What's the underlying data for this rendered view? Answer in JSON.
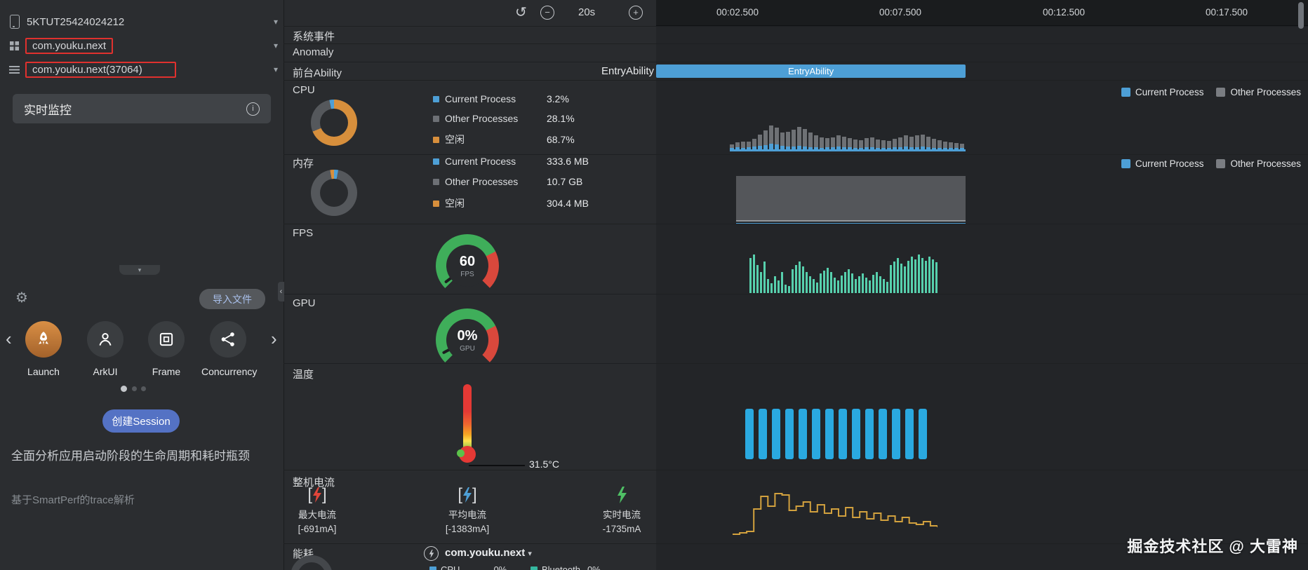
{
  "colors": {
    "accent_blue": "#4d9fd6",
    "idle_orange": "#d78f3c",
    "other_gray": "#6d7075",
    "bar_gray": "#6e7175",
    "fps_teal": "#57d0ad",
    "temp_blue": "#2aa9e0",
    "current_amber": "#d2a13e",
    "gauge_green": "#3fae5a",
    "gauge_red": "#d9483c",
    "annotation_red": "#e0312e",
    "session_blue": "#5472c4"
  },
  "sidebar": {
    "device": "5KTUT25424024212",
    "app": "com.youku.next",
    "process": "com.youku.next(37064)",
    "monitor_button": "实时监控",
    "import_button": "导入文件",
    "templates": [
      {
        "label": "Launch"
      },
      {
        "label": "ArkUI"
      },
      {
        "label": "Frame"
      },
      {
        "label": "Concurrency"
      }
    ],
    "create_session": "创建Session",
    "description": "全面分析应用启动阶段的生命周期和耗时瓶颈",
    "subtitle": "基于SmartPerf的trace解析"
  },
  "toolbar": {
    "duration": "20s"
  },
  "timeline": {
    "t1": "00:02.500",
    "t2": "00:07.500",
    "t3": "00:12.500",
    "t4": "00:17.500"
  },
  "chart_legend": {
    "current": "Current Process",
    "other": "Other Processes"
  },
  "rows": {
    "system_events": "系统事件",
    "anomaly": "Anomaly",
    "ability": {
      "label": "前台Ability",
      "value": "EntryAbility"
    },
    "cpu": {
      "label": "CPU",
      "legend": [
        {
          "name": "Current Process",
          "value": "3.2%"
        },
        {
          "name": "Other Processes",
          "value": "28.1%"
        },
        {
          "name": "空闲",
          "value": "68.7%"
        }
      ]
    },
    "memory": {
      "label": "内存",
      "legend": [
        {
          "name": "Current Process",
          "value": "333.6 MB"
        },
        {
          "name": "Other Processes",
          "value": "10.7 GB"
        },
        {
          "name": "空闲",
          "value": "304.4 MB"
        }
      ]
    },
    "fps": {
      "label": "FPS",
      "gauge_value": "60",
      "gauge_unit": "FPS"
    },
    "gpu": {
      "label": "GPU",
      "gauge_value": "0%",
      "gauge_unit": "GPU"
    },
    "temperature": {
      "label": "温度",
      "value": "31.5°C"
    },
    "current": {
      "label": "整机电流",
      "items": [
        {
          "name": "最大电流",
          "value": "[-691mA]"
        },
        {
          "name": "平均电流",
          "value": "[-1383mA]"
        },
        {
          "name": "实时电流",
          "value": "-1735mA"
        }
      ]
    },
    "energy": {
      "label": "能耗",
      "app": "com.youku.next",
      "legend": [
        {
          "name": "CPU",
          "value": "0%"
        },
        {
          "name": "Bluetooth",
          "value": "0%"
        }
      ]
    }
  },
  "entry_bar": {
    "label": "EntryAbility"
  },
  "watermark": "掘金技术社区 @ 大雷神",
  "chart_data": {
    "type": "profiler-tracks",
    "window": "20s",
    "ticks": [
      "00:02.500",
      "00:07.500",
      "00:12.500",
      "00:17.500"
    ],
    "entry_ability": {
      "label": "EntryAbility",
      "start_s": 0,
      "end_s": 9.5
    },
    "cpu": {
      "donut_pct": [
        {
          "name": "空闲",
          "pct": 68.7,
          "color": "#d78f3c"
        },
        {
          "name": "Other Processes",
          "pct": 28.1,
          "color": "#55585c"
        },
        {
          "name": "Current Process",
          "pct": 3.2,
          "color": "#4d9fd6"
        }
      ],
      "bars_other": [
        5,
        7,
        9,
        8,
        11,
        16,
        21,
        26,
        24,
        19,
        21,
        24,
        27,
        25,
        21,
        17,
        15,
        13,
        14,
        16,
        15,
        13,
        12,
        11,
        13,
        14,
        12,
        11,
        10,
        12,
        14,
        16,
        15,
        17,
        17,
        15,
        13,
        11,
        9,
        8,
        7,
        6
      ],
      "bars_current": [
        2,
        3,
        2,
        3,
        4,
        5,
        6,
        8,
        7,
        5,
        4,
        4,
        5,
        4,
        3,
        3,
        2,
        3,
        3,
        4,
        3,
        3,
        2,
        2,
        3,
        3,
        2,
        2,
        2,
        3,
        3,
        4,
        3,
        3,
        4,
        3,
        2,
        2,
        2,
        2,
        2,
        2
      ]
    },
    "memory": {
      "donut_pct": [
        {
          "name": "Current Process",
          "pct": 2.9,
          "color": "#4d9fd6"
        },
        {
          "name": "Other Processes",
          "pct": 94.4,
          "color": "#55585c"
        },
        {
          "name": "空闲",
          "pct": 2.7,
          "color": "#d78f3c"
        }
      ],
      "block": {
        "start_s": 2.45,
        "end_s": 9.5
      }
    },
    "fps": {
      "gauge": 60,
      "bars": [
        50,
        55,
        40,
        30,
        45,
        20,
        14,
        24,
        18,
        30,
        12,
        10,
        34,
        40,
        45,
        38,
        30,
        24,
        20,
        15,
        28,
        32,
        36,
        30,
        22,
        18,
        25,
        30,
        34,
        28,
        20,
        24,
        28,
        22,
        18,
        26,
        30,
        24,
        20,
        16,
        40,
        45,
        50,
        42,
        38,
        46,
        52,
        48,
        55,
        50,
        46,
        52,
        48,
        44
      ]
    },
    "gpu": {
      "gauge_pct": 0
    },
    "temperature": {
      "value_c": 31.5,
      "bar_count": 14
    },
    "current_ma": {
      "max": -691,
      "avg": -1383,
      "realtime": -1735,
      "line": [
        74,
        72,
        70,
        38,
        20,
        34,
        16,
        18,
        40,
        34,
        28,
        42,
        32,
        44,
        38,
        48,
        36,
        50,
        42,
        52,
        44,
        54,
        48,
        56,
        50,
        58,
        60,
        56,
        62,
        64
      ]
    }
  }
}
